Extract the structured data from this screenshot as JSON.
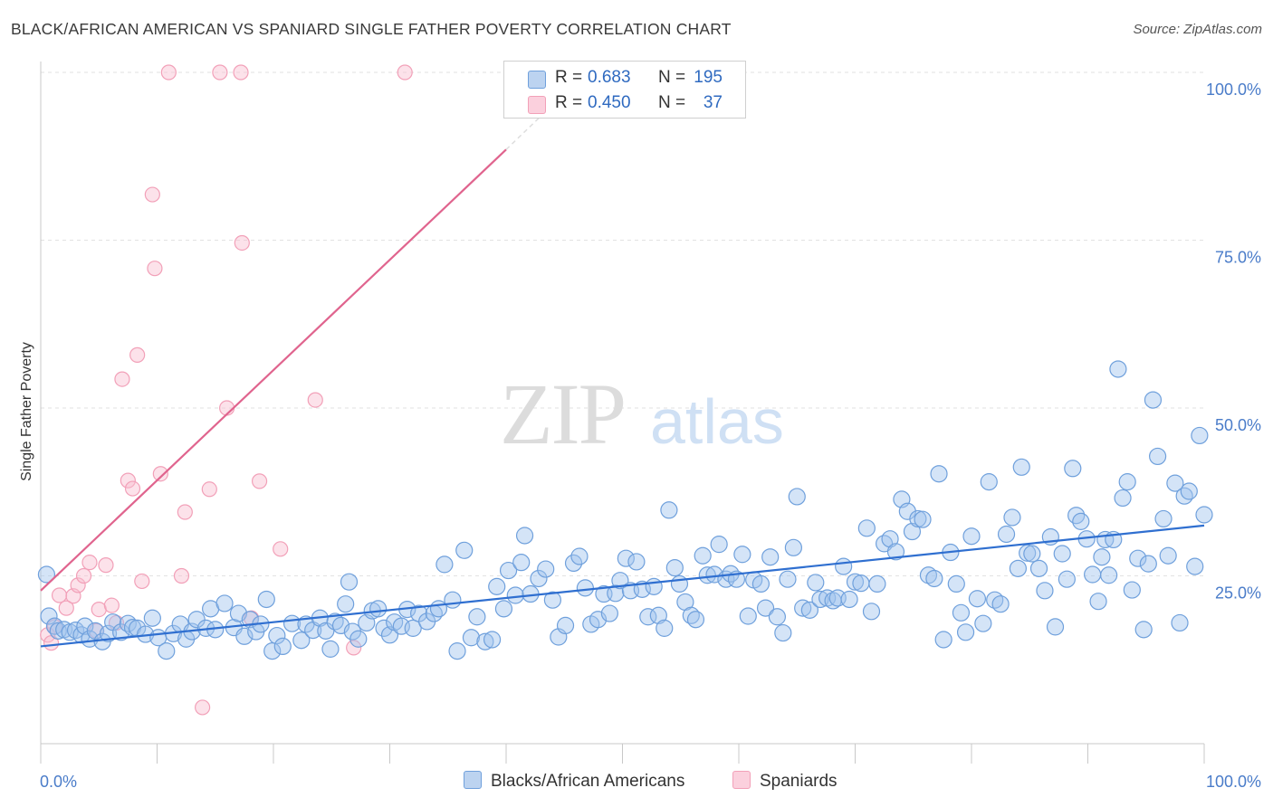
{
  "title": "BLACK/AFRICAN AMERICAN VS SPANIARD SINGLE FATHER POVERTY CORRELATION CHART",
  "source": "Source: ZipAtlas.com",
  "watermark": {
    "zip": "ZIP",
    "atlas": "atlas"
  },
  "legend": {
    "blue": {
      "r_label": "R =",
      "r_value": "0.683",
      "n_label": "N =",
      "n_value": "195"
    },
    "pink": {
      "r_label": "R =",
      "r_value": "0.450",
      "n_label": "N =",
      "n_value": "37"
    }
  },
  "colors": {
    "blue": "#6fa0dc",
    "blue_line": "#2f6fd0",
    "pink": "#f2a0b8",
    "pink_line": "#e0648e",
    "axis_text": "#4a7cc9"
  },
  "chart_data": {
    "type": "scatter",
    "title": "BLACK/AFRICAN AMERICAN VS SPANIARD SINGLE FATHER POVERTY CORRELATION CHART",
    "xlabel": "",
    "ylabel": "Single Father Poverty",
    "xlim": [
      0,
      100
    ],
    "ylim": [
      0,
      100
    ],
    "x_ticks": [
      "0.0%",
      "100.0%"
    ],
    "y_ticks": [
      {
        "value": 25,
        "label": "25.0%"
      },
      {
        "value": 50,
        "label": "50.0%"
      },
      {
        "value": 75,
        "label": "75.0%"
      },
      {
        "value": 100,
        "label": "100.0%"
      }
    ],
    "legend_position": "bottom",
    "series": [
      {
        "name": "Blacks/African Americans",
        "color": "#6fa0dc",
        "trend": {
          "x0": 0,
          "y0": 14.5,
          "x1": 100,
          "y1": 32.5
        },
        "points": [
          [
            0.5,
            25.2
          ],
          [
            0.7,
            19.0
          ],
          [
            1.2,
            17.5
          ],
          [
            1.5,
            16.8
          ],
          [
            2.0,
            17.0
          ],
          [
            2.5,
            16.6
          ],
          [
            3.0,
            16.9
          ],
          [
            3.5,
            16.2
          ],
          [
            3.8,
            17.5
          ],
          [
            4.2,
            15.6
          ],
          [
            4.7,
            16.8
          ],
          [
            5.3,
            15.2
          ],
          [
            5.8,
            16.4
          ],
          [
            6.2,
            18.1
          ],
          [
            6.9,
            16.6
          ],
          [
            7.5,
            17.9
          ],
          [
            7.9,
            17.3
          ],
          [
            8.3,
            17.2
          ],
          [
            9.0,
            16.3
          ],
          [
            9.6,
            18.7
          ],
          [
            10.1,
            15.8
          ],
          [
            10.8,
            13.8
          ],
          [
            11.4,
            16.4
          ],
          [
            12.0,
            17.8
          ],
          [
            12.5,
            15.6
          ],
          [
            13.0,
            16.7
          ],
          [
            13.4,
            18.5
          ],
          [
            14.2,
            17.2
          ],
          [
            14.6,
            20.1
          ],
          [
            15.0,
            17.0
          ],
          [
            15.8,
            20.9
          ],
          [
            16.6,
            17.3
          ],
          [
            17.0,
            19.4
          ],
          [
            17.5,
            16.0
          ],
          [
            18.0,
            18.5
          ],
          [
            18.5,
            16.7
          ],
          [
            18.9,
            17.8
          ],
          [
            19.4,
            21.5
          ],
          [
            19.9,
            13.8
          ],
          [
            20.3,
            16.1
          ],
          [
            20.8,
            14.5
          ],
          [
            21.6,
            17.9
          ],
          [
            22.4,
            15.4
          ],
          [
            22.8,
            17.8
          ],
          [
            23.4,
            16.9
          ],
          [
            24.0,
            18.7
          ],
          [
            24.5,
            16.8
          ],
          [
            24.9,
            14.1
          ],
          [
            25.3,
            18.2
          ],
          [
            25.8,
            17.6
          ],
          [
            26.2,
            20.8
          ],
          [
            26.5,
            24.1
          ],
          [
            26.8,
            16.7
          ],
          [
            27.3,
            15.6
          ],
          [
            28.0,
            18.0
          ],
          [
            28.5,
            19.8
          ],
          [
            29.0,
            20.1
          ],
          [
            29.5,
            17.2
          ],
          [
            30.0,
            16.2
          ],
          [
            30.4,
            18.1
          ],
          [
            31.0,
            17.5
          ],
          [
            31.5,
            20.0
          ],
          [
            32.0,
            17.2
          ],
          [
            32.5,
            19.4
          ],
          [
            33.2,
            18.2
          ],
          [
            33.8,
            19.4
          ],
          [
            34.2,
            20.1
          ],
          [
            34.7,
            26.7
          ],
          [
            35.4,
            21.4
          ],
          [
            35.8,
            13.8
          ],
          [
            36.4,
            28.8
          ],
          [
            37.0,
            15.8
          ],
          [
            37.5,
            18.9
          ],
          [
            38.2,
            15.2
          ],
          [
            38.8,
            15.5
          ],
          [
            39.2,
            23.4
          ],
          [
            39.8,
            20.1
          ],
          [
            40.2,
            25.8
          ],
          [
            40.8,
            22.1
          ],
          [
            41.3,
            27.0
          ],
          [
            41.6,
            31.0
          ],
          [
            42.1,
            22.3
          ],
          [
            42.8,
            24.6
          ],
          [
            43.4,
            26.0
          ],
          [
            44.0,
            21.4
          ],
          [
            44.5,
            15.9
          ],
          [
            45.1,
            17.6
          ],
          [
            45.8,
            26.9
          ],
          [
            46.3,
            27.9
          ],
          [
            46.8,
            23.2
          ],
          [
            47.3,
            17.8
          ],
          [
            47.9,
            18.5
          ],
          [
            48.4,
            22.3
          ],
          [
            48.9,
            19.4
          ],
          [
            49.4,
            22.4
          ],
          [
            49.8,
            24.3
          ],
          [
            50.3,
            27.6
          ],
          [
            50.7,
            22.8
          ],
          [
            51.2,
            27.1
          ],
          [
            51.7,
            23.0
          ],
          [
            52.2,
            18.9
          ],
          [
            52.7,
            23.4
          ],
          [
            53.1,
            19.1
          ],
          [
            53.6,
            17.2
          ],
          [
            54.0,
            34.8
          ],
          [
            54.5,
            26.2
          ],
          [
            54.9,
            23.8
          ],
          [
            55.4,
            21.1
          ],
          [
            55.9,
            19.1
          ],
          [
            56.3,
            18.5
          ],
          [
            56.9,
            28.0
          ],
          [
            57.3,
            25.1
          ],
          [
            57.9,
            25.2
          ],
          [
            58.3,
            29.7
          ],
          [
            58.9,
            24.5
          ],
          [
            59.3,
            25.3
          ],
          [
            59.8,
            24.5
          ],
          [
            60.3,
            28.2
          ],
          [
            60.8,
            19.0
          ],
          [
            61.3,
            24.4
          ],
          [
            61.9,
            23.8
          ],
          [
            62.3,
            20.2
          ],
          [
            62.7,
            27.8
          ],
          [
            63.3,
            18.9
          ],
          [
            63.8,
            16.5
          ],
          [
            64.2,
            24.5
          ],
          [
            64.7,
            29.2
          ],
          [
            65.0,
            36.8
          ],
          [
            65.5,
            20.2
          ],
          [
            66.1,
            19.9
          ],
          [
            66.6,
            24.0
          ],
          [
            67.0,
            21.5
          ],
          [
            67.6,
            21.7
          ],
          [
            68.1,
            21.3
          ],
          [
            68.5,
            21.7
          ],
          [
            69.0,
            26.4
          ],
          [
            69.5,
            21.5
          ],
          [
            70.0,
            24.1
          ],
          [
            70.5,
            23.9
          ],
          [
            71.0,
            32.1
          ],
          [
            71.4,
            19.7
          ],
          [
            71.9,
            23.8
          ],
          [
            72.5,
            29.8
          ],
          [
            73.0,
            30.5
          ],
          [
            73.5,
            28.6
          ],
          [
            74.0,
            36.4
          ],
          [
            74.5,
            34.6
          ],
          [
            74.9,
            31.6
          ],
          [
            75.4,
            33.5
          ],
          [
            75.8,
            33.4
          ],
          [
            76.3,
            25.1
          ],
          [
            76.8,
            24.6
          ],
          [
            77.2,
            40.2
          ],
          [
            77.6,
            15.5
          ],
          [
            78.2,
            28.5
          ],
          [
            78.7,
            23.8
          ],
          [
            79.1,
            19.5
          ],
          [
            79.5,
            16.6
          ],
          [
            80.0,
            30.9
          ],
          [
            80.5,
            21.6
          ],
          [
            81.0,
            17.9
          ],
          [
            81.5,
            39.0
          ],
          [
            82.0,
            21.4
          ],
          [
            82.5,
            20.8
          ],
          [
            83.0,
            31.2
          ],
          [
            83.5,
            33.7
          ],
          [
            84.0,
            26.1
          ],
          [
            84.3,
            41.2
          ],
          [
            84.8,
            28.4
          ],
          [
            85.2,
            28.3
          ],
          [
            85.8,
            26.1
          ],
          [
            86.3,
            22.8
          ],
          [
            86.8,
            30.8
          ],
          [
            87.2,
            17.4
          ],
          [
            87.8,
            28.3
          ],
          [
            88.2,
            24.5
          ],
          [
            88.7,
            41.0
          ],
          [
            89.0,
            34.0
          ],
          [
            89.4,
            33.1
          ],
          [
            89.9,
            30.5
          ],
          [
            90.4,
            25.2
          ],
          [
            90.9,
            21.2
          ],
          [
            91.2,
            27.8
          ],
          [
            91.5,
            30.4
          ],
          [
            91.8,
            25.1
          ],
          [
            92.2,
            30.4
          ],
          [
            92.6,
            55.8
          ],
          [
            93.0,
            36.6
          ],
          [
            93.4,
            39.0
          ],
          [
            93.8,
            22.9
          ],
          [
            94.3,
            27.6
          ],
          [
            94.8,
            17.0
          ],
          [
            95.2,
            26.8
          ],
          [
            95.6,
            51.2
          ],
          [
            96.0,
            42.8
          ],
          [
            96.5,
            33.5
          ],
          [
            96.9,
            28.0
          ],
          [
            97.5,
            38.8
          ],
          [
            97.9,
            18.0
          ],
          [
            98.3,
            36.9
          ],
          [
            98.7,
            37.6
          ],
          [
            99.2,
            26.4
          ],
          [
            99.6,
            45.9
          ],
          [
            100.0,
            34.1
          ]
        ]
      },
      {
        "name": "Spaniards",
        "color": "#f2a0b8",
        "trend": {
          "x0": 0,
          "y0": 22.8,
          "x1": 40,
          "y1": 88.5,
          "dash_to_x": 43,
          "dash_to_y": 93.5
        },
        "points": [
          [
            0.6,
            16.2
          ],
          [
            0.9,
            15.0
          ],
          [
            1.2,
            17.4
          ],
          [
            1.6,
            22.1
          ],
          [
            2.2,
            20.2
          ],
          [
            2.8,
            22.0
          ],
          [
            3.2,
            23.6
          ],
          [
            3.7,
            25.0
          ],
          [
            4.2,
            27.0
          ],
          [
            4.8,
            16.8
          ],
          [
            5.0,
            20.0
          ],
          [
            5.6,
            26.6
          ],
          [
            6.1,
            20.6
          ],
          [
            6.5,
            18.0
          ],
          [
            7.0,
            54.3
          ],
          [
            7.5,
            39.2
          ],
          [
            7.9,
            38.0
          ],
          [
            8.3,
            57.9
          ],
          [
            8.7,
            24.2
          ],
          [
            9.6,
            81.8
          ],
          [
            9.8,
            70.8
          ],
          [
            10.3,
            40.2
          ],
          [
            11.0,
            100
          ],
          [
            12.1,
            25.0
          ],
          [
            12.4,
            34.5
          ],
          [
            13.9,
            5.4
          ],
          [
            14.5,
            37.9
          ],
          [
            15.4,
            100
          ],
          [
            16.0,
            50.0
          ],
          [
            17.2,
            100
          ],
          [
            17.3,
            74.6
          ],
          [
            18.1,
            18.7
          ],
          [
            18.8,
            39.1
          ],
          [
            20.6,
            29.0
          ],
          [
            23.6,
            51.2
          ],
          [
            26.9,
            14.3
          ],
          [
            31.3,
            100
          ]
        ]
      }
    ]
  },
  "bottom_legend": {
    "blue_label": "Blacks/African Americans",
    "pink_label": "Spaniards"
  }
}
